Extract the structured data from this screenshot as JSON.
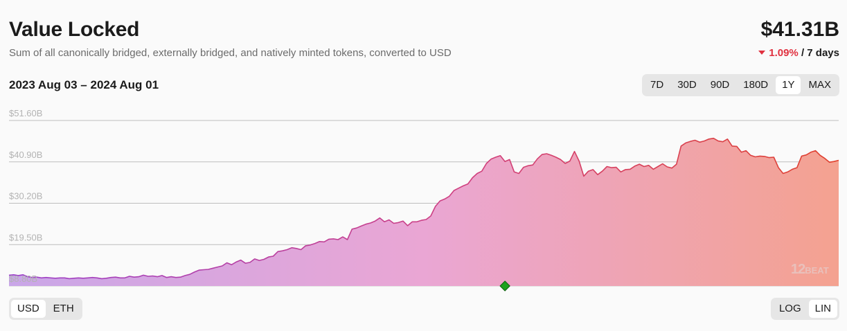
{
  "header": {
    "title": "Value Locked",
    "subtitle": "Sum of all canonically bridged, externally bridged, and natively minted tokens, converted to USD",
    "value": "$41.31B",
    "change": "1.09%",
    "change_period": "/ 7 days",
    "change_color": "#e0303f"
  },
  "date_range": "2023 Aug 03 – 2024 Aug 01",
  "time_options": [
    "7D",
    "30D",
    "90D",
    "180D",
    "1Y",
    "MAX"
  ],
  "time_selected": "1Y",
  "currency_options": [
    "USD",
    "ETH"
  ],
  "currency_selected": "USD",
  "scale_options": [
    "LOG",
    "LIN"
  ],
  "scale_selected": "LIN",
  "watermark": {
    "lead": "12",
    "tail": "BEAT"
  },
  "chart_data": {
    "type": "area",
    "x_start": "2023-08-03",
    "x_end": "2024-08-01",
    "yticks": [
      "$8.80B",
      "$19.50B",
      "$30.20B",
      "$40.90B",
      "$51.60B"
    ],
    "ytick_values": [
      8.8,
      19.5,
      30.2,
      40.9,
      51.6
    ],
    "ylim": [
      8.8,
      51.6
    ],
    "grid": true,
    "gradient_colors": [
      "#c9a6e8",
      "#eaa6d4",
      "#f4a290"
    ],
    "line_colors": [
      "#9b3fc9",
      "#d0407f",
      "#e0402c"
    ],
    "marker_color": "#1ea21e",
    "series": [
      {
        "values": [
          11.6,
          11.7,
          11.5,
          11.7,
          11.2,
          11.0,
          11.1,
          10.9,
          11.0,
          10.9,
          10.8,
          10.9,
          10.9,
          10.7,
          10.8,
          10.9,
          10.8,
          10.9,
          11.0,
          10.9,
          10.7,
          10.8,
          11.0,
          11.1,
          10.9,
          10.9,
          11.3,
          11.1,
          11.2,
          11.6,
          11.3,
          11.4,
          11.2,
          11.5,
          11.0,
          11.2,
          11.0,
          11.1,
          11.5,
          11.8,
          12.4,
          12.9,
          13.0,
          13.1,
          13.4,
          13.7,
          14.0,
          14.8,
          14.3,
          15.0,
          15.5,
          14.7,
          14.9,
          15.8,
          15.4,
          15.7,
          16.3,
          16.5,
          17.7,
          17.9,
          18.2,
          18.7,
          18.5,
          18.2,
          19.2,
          19.4,
          19.8,
          20.3,
          20.2,
          20.9,
          21.0,
          20.8,
          21.5,
          20.8,
          23.5,
          23.8,
          24.3,
          24.8,
          25.1,
          25.6,
          26.4,
          25.4,
          25.9,
          25.0,
          25.2,
          25.6,
          24.4,
          25.4,
          25.4,
          25.8,
          26.0,
          26.9,
          29.4,
          30.8,
          31.3,
          32.0,
          33.5,
          34.1,
          34.7,
          35.2,
          36.8,
          37.9,
          38.5,
          40.5,
          41.6,
          42.1,
          42.5,
          41.0,
          41.5,
          38.3,
          37.9,
          39.5,
          39.9,
          40.1,
          41.7,
          42.8,
          43.0,
          42.6,
          42.1,
          41.5,
          40.5,
          41.1,
          43.6,
          41.1,
          37.2,
          38.5,
          38.9,
          37.6,
          38.5,
          39.7,
          39.4,
          39.5,
          38.3,
          38.9,
          39.0,
          39.8,
          40.3,
          39.7,
          40.0,
          39.0,
          39.7,
          40.4,
          39.6,
          39.3,
          40.3,
          45.0,
          45.8,
          46.2,
          46.5,
          46.0,
          46.3,
          46.8,
          47.0,
          46.3,
          46.1,
          46.8,
          45.0,
          44.9,
          43.4,
          43.8,
          42.6,
          42.2,
          42.4,
          42.3,
          42.0,
          42.1,
          39.4,
          37.9,
          38.3,
          39.0,
          39.4,
          42.4,
          42.7,
          43.4,
          43.8,
          42.6,
          41.8,
          40.8,
          41.0,
          41.3
        ]
      }
    ],
    "marker_index": 107
  }
}
